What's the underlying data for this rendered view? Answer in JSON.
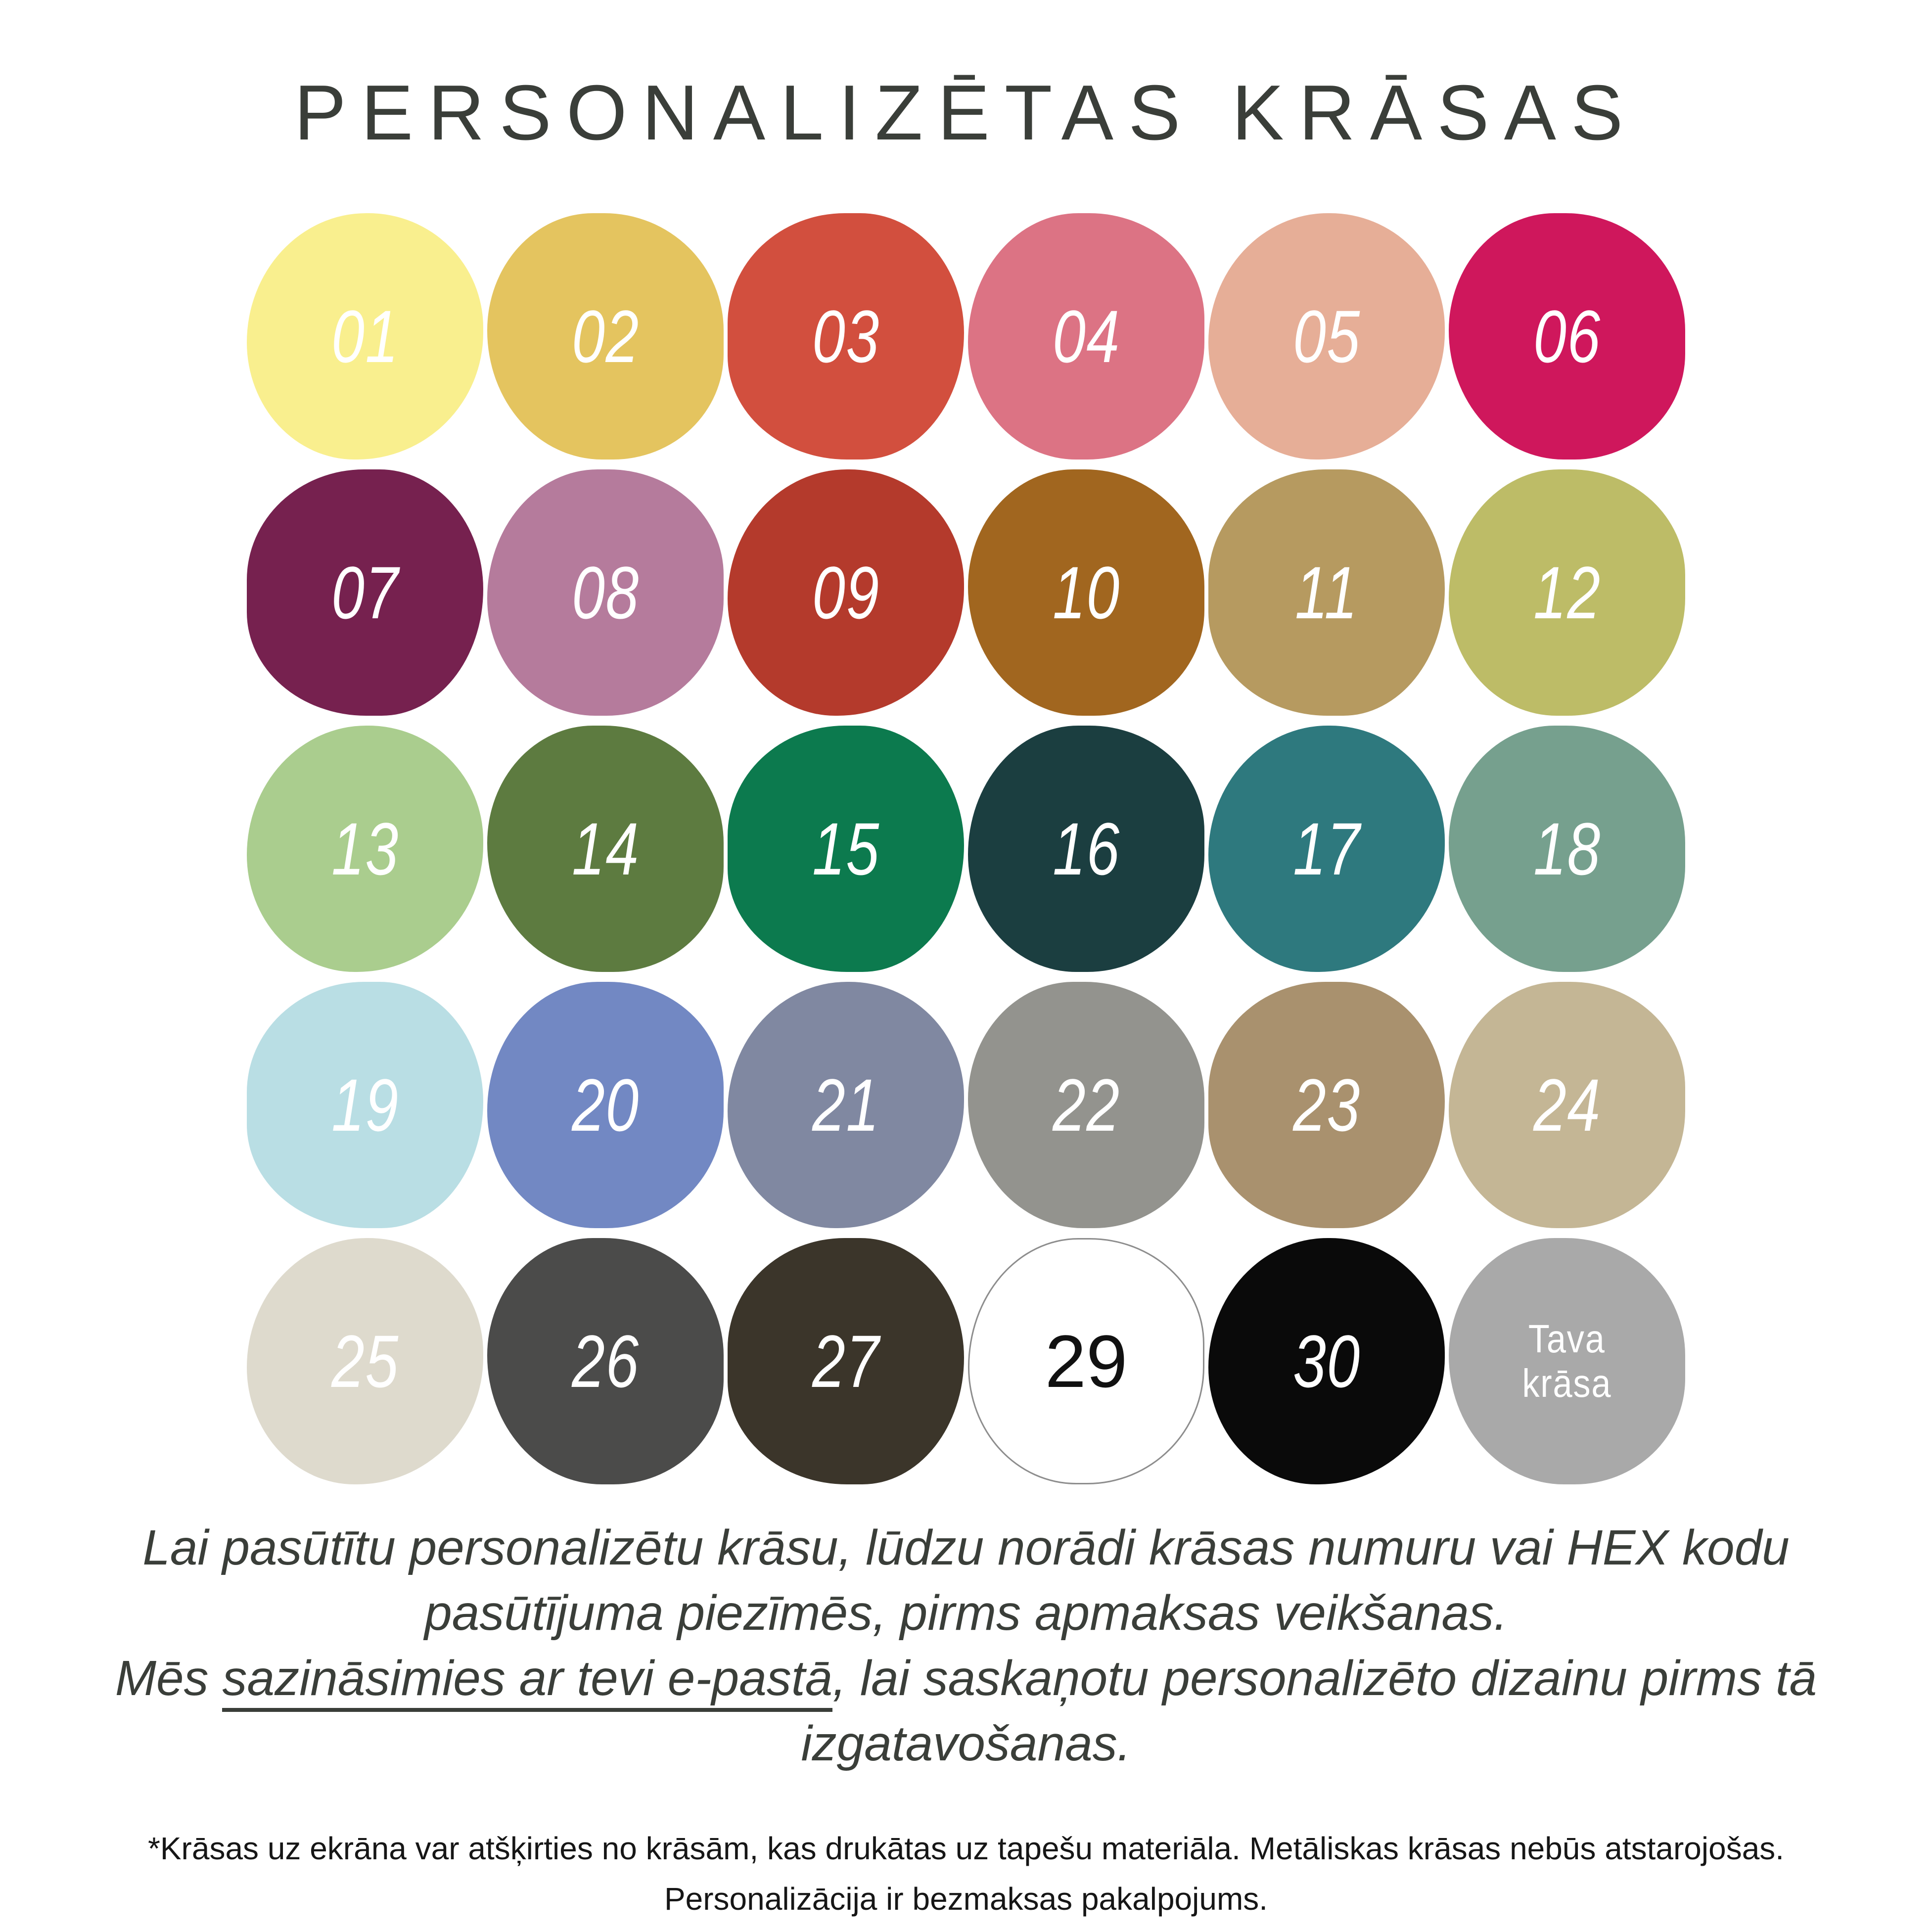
{
  "title": "PERSONALIZĒTAS KRĀSAS",
  "colors": {
    "background": "#FFFFFF",
    "ink": "#3A3E39",
    "footnote_ink": "#161616"
  },
  "swatch_grid": {
    "columns": 6,
    "items": [
      {
        "label": "01",
        "color": "#F9EF8E",
        "text_color": "#FFFFFF"
      },
      {
        "label": "02",
        "color": "#E4C45F",
        "text_color": "#FFFFFF"
      },
      {
        "label": "03",
        "color": "#D24F3E",
        "text_color": "#FFFFFF"
      },
      {
        "label": "04",
        "color": "#DC7384",
        "text_color": "#FFFFFF"
      },
      {
        "label": "05",
        "color": "#E6AE97",
        "text_color": "#FFFFFF"
      },
      {
        "label": "06",
        "color": "#CF175C",
        "text_color": "#FFFFFF"
      },
      {
        "label": "07",
        "color": "#76214F",
        "text_color": "#FFFFFF"
      },
      {
        "label": "08",
        "color": "#B57B9C",
        "text_color": "#FFFFFF"
      },
      {
        "label": "09",
        "color": "#B43A2C",
        "text_color": "#FFFFFF"
      },
      {
        "label": "10",
        "color": "#A1661F",
        "text_color": "#FFFFFF"
      },
      {
        "label": "11",
        "color": "#B69A60",
        "text_color": "#FFFFFF"
      },
      {
        "label": "12",
        "color": "#BDBC67",
        "text_color": "#FFFFFF"
      },
      {
        "label": "13",
        "color": "#AACD8E",
        "text_color": "#FFFFFF"
      },
      {
        "label": "14",
        "color": "#5D7B40",
        "text_color": "#FFFFFF"
      },
      {
        "label": "15",
        "color": "#0C7A4E",
        "text_color": "#FFFFFF"
      },
      {
        "label": "16",
        "color": "#1B3E40",
        "text_color": "#FFFFFF"
      },
      {
        "label": "17",
        "color": "#2E797E",
        "text_color": "#FFFFFF"
      },
      {
        "label": "18",
        "color": "#76A08E",
        "text_color": "#FFFFFF"
      },
      {
        "label": "19",
        "color": "#B9DEE4",
        "text_color": "#FFFFFF"
      },
      {
        "label": "20",
        "color": "#7288C3",
        "text_color": "#FFFFFF"
      },
      {
        "label": "21",
        "color": "#8088A1",
        "text_color": "#FFFFFF"
      },
      {
        "label": "22",
        "color": "#93938E",
        "text_color": "#FFFFFF"
      },
      {
        "label": "23",
        "color": "#A9916E",
        "text_color": "#FFFFFF"
      },
      {
        "label": "24",
        "color": "#C4B695",
        "text_color": "#FFFFFF"
      },
      {
        "label": "25",
        "color": "#DEDACD",
        "text_color": "#FFFFFF"
      },
      {
        "label": "26",
        "color": "#4B4B4A",
        "text_color": "#FFFFFF"
      },
      {
        "label": "27",
        "color": "#3B352A",
        "text_color": "#FFFFFF"
      },
      {
        "label": "29",
        "color": "#FFFFFF",
        "text_color": "#111111",
        "outlined": true,
        "upright": true
      },
      {
        "label": "30",
        "color": "#0A0A0A",
        "text_color": "#FFFFFF"
      },
      {
        "label": "Tava krāsa",
        "lines": [
          "Tava",
          "krāsa"
        ],
        "color": "#A9A9A9",
        "text_color": "#FFFFFF"
      }
    ]
  },
  "order_note": {
    "sentence1": "Lai pasūtītu personalizētu krāsu, lūdzu norādi krāsas numuru vai HEX kodu pasūtījuma piezīmēs, pirms apmaksas veikšanas.",
    "sentence2_prefix": "Mēs ",
    "sentence2_link": "sazināsimies ar tevi e-pastā",
    "sentence2_suffix": ", lai saskaņotu personalizēto dizainu pirms tā izgatavošanas."
  },
  "footnote": {
    "line1": "*Krāsas uz ekrāna var atšķirties no krāsām, kas drukātas uz tapešu materiāla. Metāliskas krāsas nebūs atstarojošas.",
    "line2": "Personalizācija ir bezmaksas pakalpojums."
  }
}
